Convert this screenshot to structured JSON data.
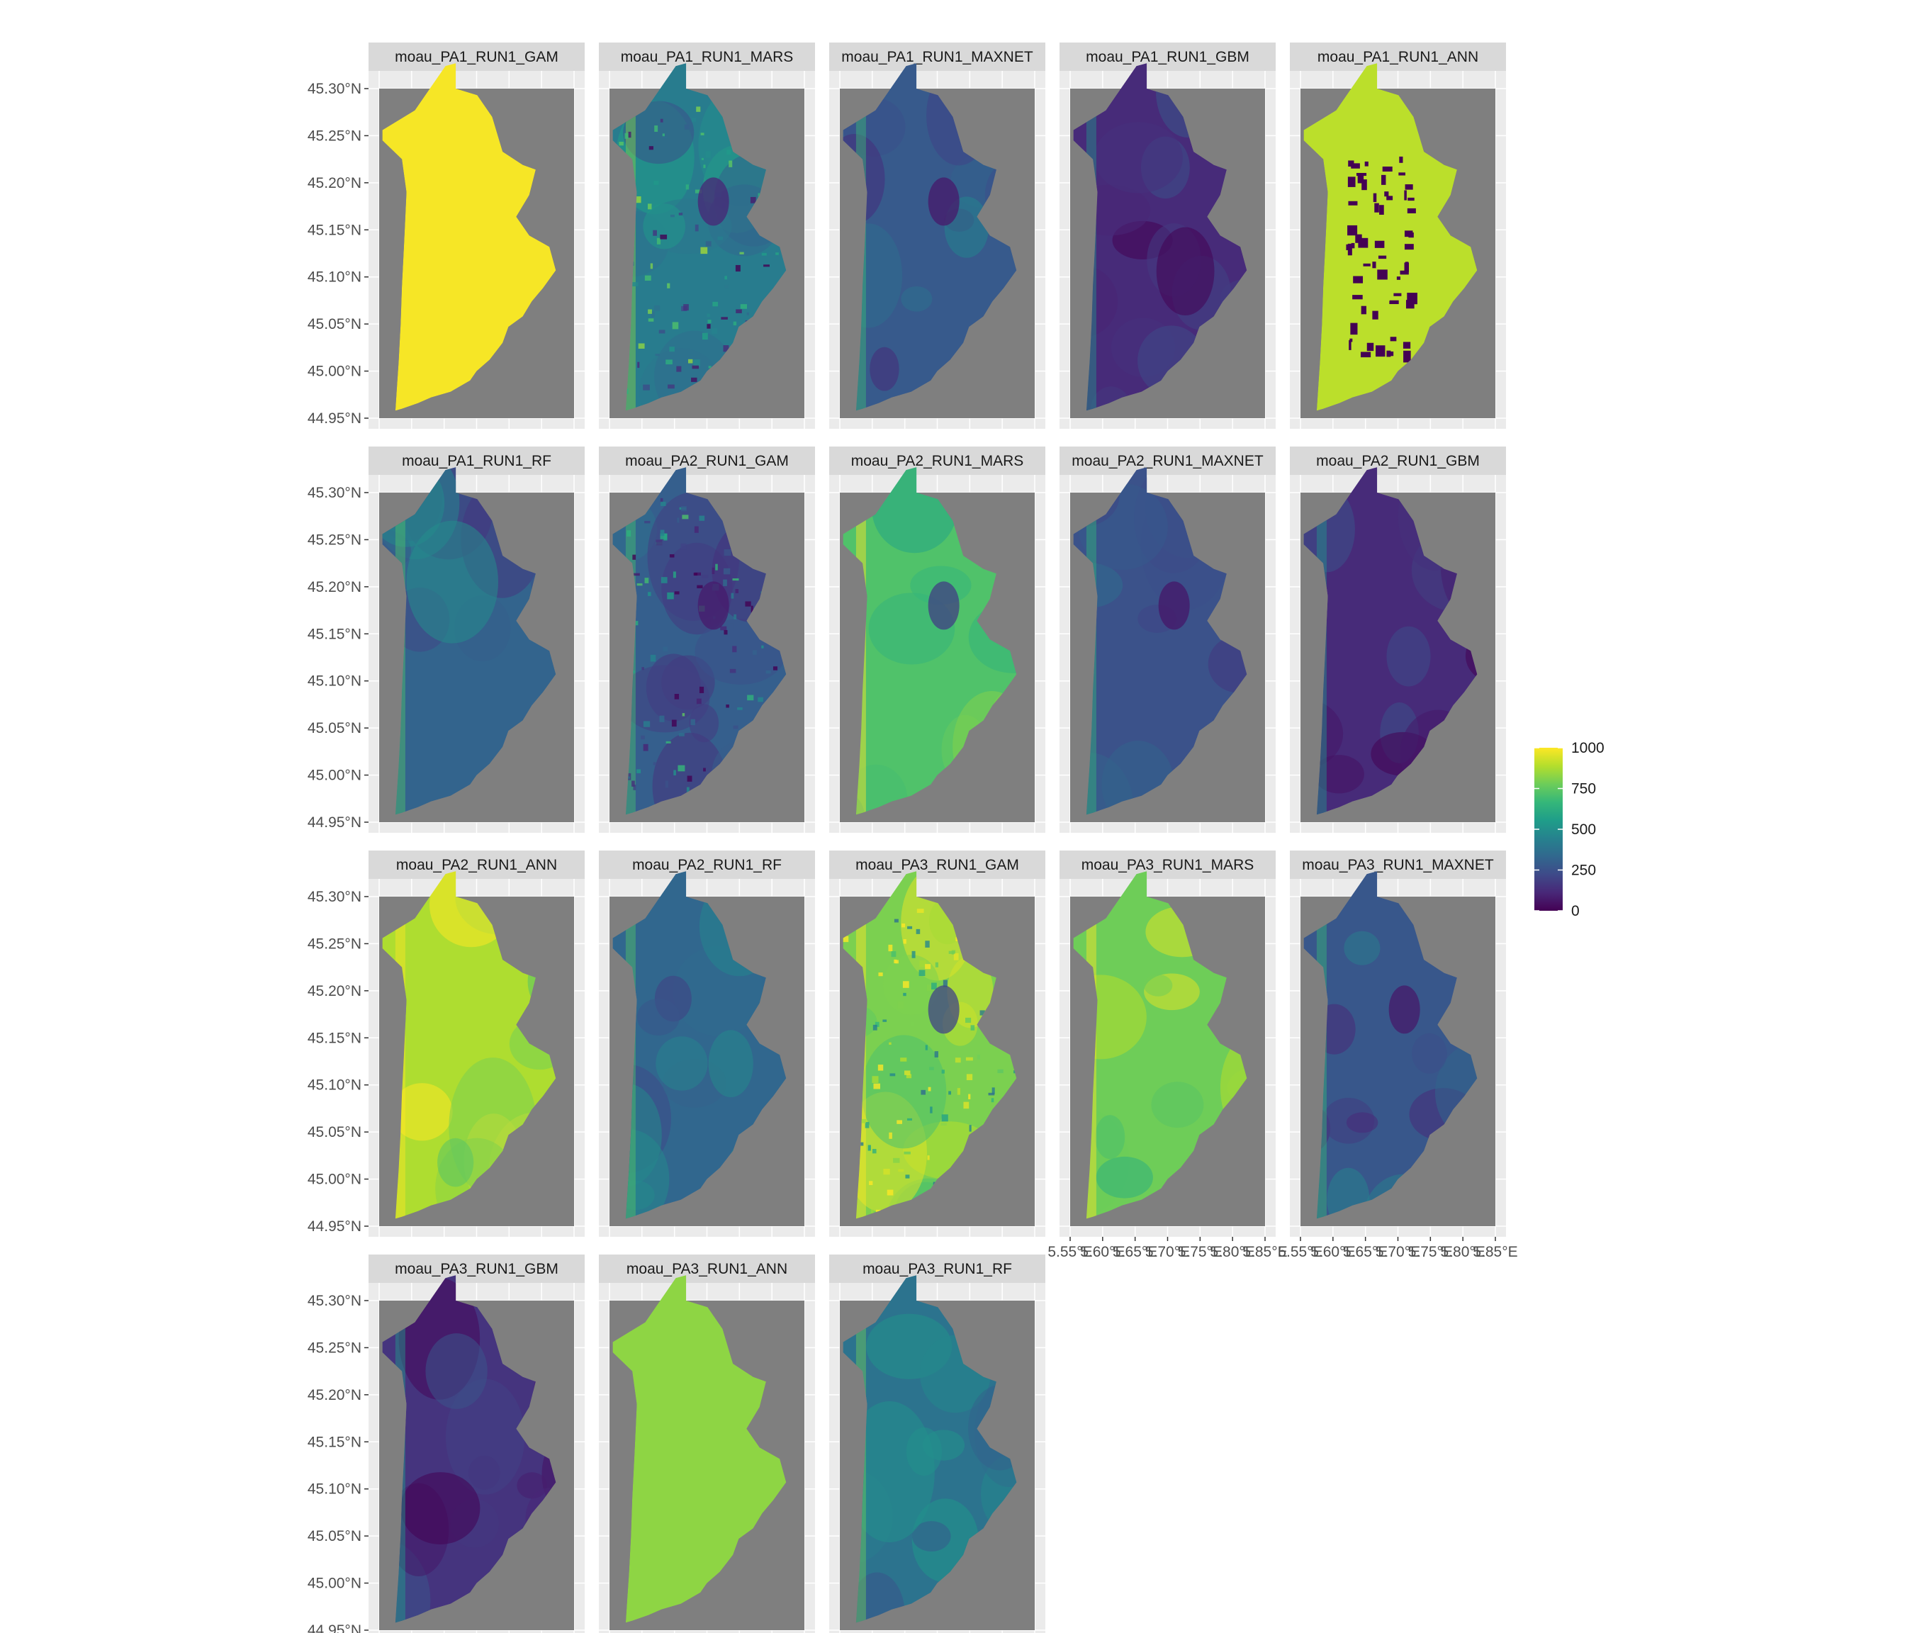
{
  "chart_data": {
    "type": "heatmap",
    "description_kind": "faceted raster maps",
    "panels": [
      {
        "label": "moau_PA1_RUN1_GAM",
        "pattern": "uniform",
        "level": 990
      },
      {
        "label": "moau_PA1_RUN1_MARS",
        "pattern": "speckle",
        "level": 420
      },
      {
        "label": "moau_PA1_RUN1_MAXNET",
        "pattern": "smooth",
        "level": 280
      },
      {
        "label": "moau_PA1_RUN1_GBM",
        "pattern": "smooth",
        "level": 120
      },
      {
        "label": "moau_PA1_RUN1_ANN",
        "pattern": "binary",
        "level": 900
      },
      {
        "label": "moau_PA1_RUN1_RF",
        "pattern": "smooth",
        "level": 320
      },
      {
        "label": "moau_PA2_RUN1_GAM",
        "pattern": "speckle",
        "level": 300
      },
      {
        "label": "moau_PA2_RUN1_MARS",
        "pattern": "smooth",
        "level": 720
      },
      {
        "label": "moau_PA2_RUN1_MAXNET",
        "pattern": "smooth",
        "level": 250
      },
      {
        "label": "moau_PA2_RUN1_GBM",
        "pattern": "smooth",
        "level": 120
      },
      {
        "label": "moau_PA2_RUN1_ANN",
        "pattern": "smooth",
        "level": 880
      },
      {
        "label": "moau_PA2_RUN1_RF",
        "pattern": "smooth",
        "level": 330
      },
      {
        "label": "moau_PA3_RUN1_GAM",
        "pattern": "speckle",
        "level": 800
      },
      {
        "label": "moau_PA3_RUN1_MARS",
        "pattern": "smooth",
        "level": 780
      },
      {
        "label": "moau_PA3_RUN1_MAXNET",
        "pattern": "smooth",
        "level": 270
      },
      {
        "label": "moau_PA3_RUN1_GBM",
        "pattern": "smooth",
        "level": 150
      },
      {
        "label": "moau_PA3_RUN1_ANN",
        "pattern": "uniform",
        "level": 830
      },
      {
        "label": "moau_PA3_RUN1_RF",
        "pattern": "smooth",
        "level": 380
      }
    ],
    "y_ticks": [
      "45.30°N",
      "45.25°N",
      "45.20°N",
      "45.15°N",
      "45.10°N",
      "45.05°N",
      "45.00°N",
      "44.95°N"
    ],
    "x_ticks": [
      "5.55°E",
      "5.60°E",
      "5.65°E",
      "5.70°E",
      "5.75°E",
      "5.80°E",
      "5.85°E"
    ],
    "x_range": [
      5.55,
      5.85
    ],
    "y_range": [
      44.95,
      45.3
    ],
    "legend": {
      "title": "",
      "ticks": [
        "1000",
        "750",
        "500",
        "250",
        "0"
      ],
      "range": [
        0,
        1000
      ],
      "colormap": "viridis",
      "placement": "right"
    },
    "grid": true,
    "colors": {
      "panel_background": "#7f7f7f",
      "strip_background": "#d9d9d9",
      "viridis_low": "#440154",
      "viridis_mid": "#21908c",
      "viridis_high": "#fde725"
    }
  }
}
